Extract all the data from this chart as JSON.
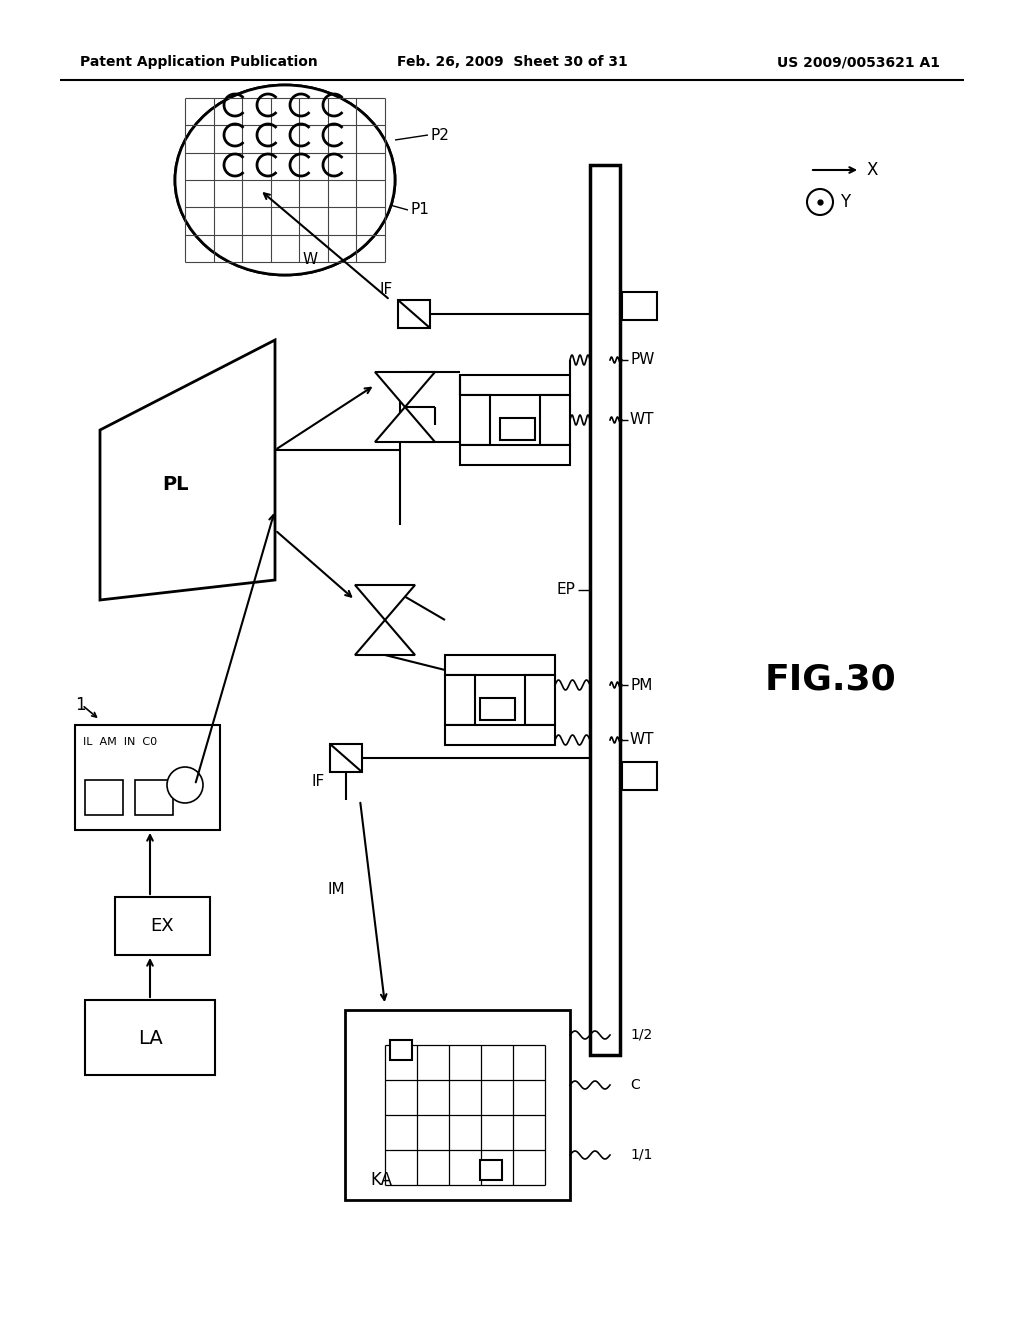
{
  "title": "FIG.30",
  "header_left": "Patent Application Publication",
  "header_center": "Feb. 26, 2009  Sheet 30 of 31",
  "header_right": "US 2009/0053621 A1",
  "bg_color": "#ffffff",
  "line_color": "#000000",
  "text_color": "#000000"
}
